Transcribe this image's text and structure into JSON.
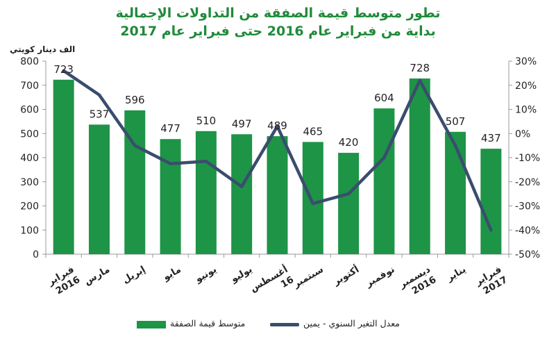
{
  "chart_data": {
    "type": "bar+line",
    "title": "تطور متوسط قيمة الصفقة من التداولات الإجمالية",
    "subtitle": "بداية من فبراير عام 2016 حتى فبراير عام 2017",
    "ylabel": "الف دينار كويتي",
    "categories": [
      "فبراير 2016",
      "مارس",
      "إبريل",
      "مايو",
      "يونيو",
      "يوليو",
      "أغسطس 16",
      "سبتمبر",
      "أكتوبر",
      "نوفمبر",
      "ديسمبر 2016",
      "يناير",
      "فبراير 2017"
    ],
    "series": [
      {
        "name": "متوسط قيمة الصفقة",
        "type": "bar",
        "axis": "left",
        "color": "#1e9447",
        "values": [
          723,
          537,
          596,
          477,
          510,
          497,
          489,
          465,
          420,
          604,
          728,
          507,
          437
        ]
      },
      {
        "name": "معدل التغير السنوي - يمين",
        "type": "line",
        "axis": "right",
        "color": "#3a4d6e",
        "values": [
          26,
          16,
          -5,
          -12.5,
          -11.5,
          -22,
          3,
          -29,
          -25,
          -10,
          22,
          -5,
          -40
        ]
      }
    ],
    "ylim_left": [
      0,
      800
    ],
    "yticks_left": [
      "0",
      "100",
      "200",
      "300",
      "400",
      "500",
      "600",
      "700",
      "800"
    ],
    "ylim_right": [
      -50,
      30
    ],
    "yticks_right": [
      "-50%",
      "-40%",
      "-30%",
      "-20%",
      "-10%",
      "0%",
      "10%",
      "20%",
      "30%"
    ],
    "grid": false,
    "legend_position": "bottom"
  }
}
